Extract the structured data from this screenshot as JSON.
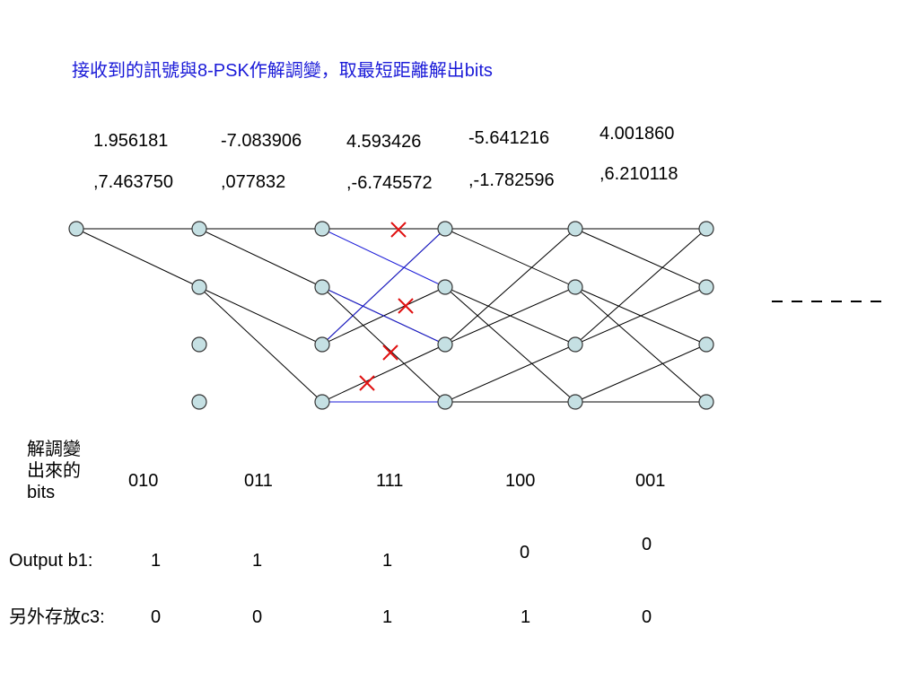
{
  "title": "接收到的訊號與8-PSK作解調變，取最短距離解出bits",
  "received_symbols": [
    {
      "real": "1.956181",
      "imag": ",7.463750"
    },
    {
      "real": "-7.083906",
      "imag": ",077832"
    },
    {
      "real": "4.593426",
      "imag": ",-6.745572"
    },
    {
      "real": "-5.641216",
      "imag": ",-1.782596"
    },
    {
      "real": "4.001860",
      "imag": ",6.210118"
    }
  ],
  "demod_label": [
    "解調變",
    "出來的",
    "bits"
  ],
  "demod_bits": [
    "010",
    "011",
    "111",
    "100",
    "001"
  ],
  "output_b1_label": "Output b1:",
  "output_b1": [
    "1",
    "1",
    "1",
    "0",
    "0"
  ],
  "c3_label": "另外存放c3:",
  "c3": [
    "0",
    "0",
    "1",
    "1",
    "0"
  ],
  "trellis": {
    "node_fill": "#c5e0e3",
    "node_stroke": "#333333",
    "edge_color": "#000000",
    "highlight_color": "#1a1ad8",
    "cross_color": "#e01010"
  }
}
